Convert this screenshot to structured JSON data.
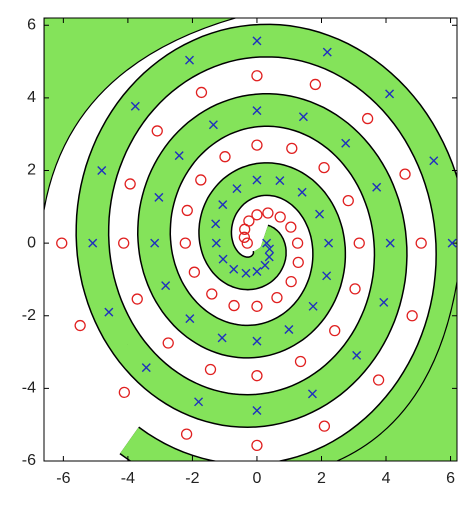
{
  "chart_data": {
    "type": "scatter",
    "xlim": [
      -6.6,
      6.2
    ],
    "ylim": [
      -6,
      6.2
    ],
    "xticks": [
      -6,
      -4,
      -2,
      0,
      2,
      4,
      6
    ],
    "yticks": [
      -6,
      -4,
      -2,
      0,
      2,
      4,
      6
    ],
    "series": [
      {
        "color": "#1f2fbf",
        "marker": "x",
        "x": [
          6.05,
          5.48,
          4.11,
          2.18,
          0,
          -2.09,
          -3.77,
          -4.81,
          -5.09,
          -4.59,
          -3.43,
          -1.81,
          0,
          1.72,
          3.09,
          3.93,
          4.13,
          3.71,
          2.75,
          1.44,
          0,
          -1.35,
          -2.41,
          -3.04,
          -3.17,
          -2.83,
          -2.08,
          -1.08,
          0,
          0.99,
          1.74,
          2.16,
          2.22,
          1.94,
          1.4,
          0.71,
          0,
          -0.62,
          -1.06,
          -1.28,
          -1.26,
          -1.05,
          -0.72,
          -0.34,
          0,
          0.25,
          0.38,
          0.39,
          0.3
        ],
        "y": [
          0,
          2.27,
          4.11,
          5.26,
          5.57,
          5.04,
          3.77,
          2,
          0,
          -1.9,
          -3.43,
          -4.37,
          -4.61,
          -4.15,
          -3.09,
          -1.63,
          0,
          1.54,
          2.75,
          3.48,
          3.65,
          3.26,
          2.41,
          1.26,
          0,
          -1.17,
          -2.08,
          -2.61,
          -2.7,
          -2.38,
          -1.74,
          -0.9,
          0,
          0.8,
          1.4,
          1.72,
          1.74,
          1.5,
          1.06,
          0.53,
          0,
          -0.44,
          -0.72,
          -0.83,
          -0.78,
          -0.61,
          -0.38,
          -0.16,
          0
        ]
      },
      {
        "color": "#e02020",
        "marker": "o",
        "x": [
          -6.05,
          -5.48,
          -4.11,
          -2.18,
          0,
          2.09,
          3.77,
          4.81,
          5.09,
          4.59,
          3.43,
          1.81,
          0,
          -1.72,
          -3.09,
          -3.93,
          -4.13,
          -3.71,
          -2.75,
          -1.44,
          0,
          1.35,
          2.41,
          3.04,
          3.17,
          2.83,
          2.08,
          1.08,
          0,
          -0.99,
          -1.74,
          -2.16,
          -2.22,
          -1.94,
          -1.4,
          -0.71,
          0,
          0.62,
          1.06,
          1.28,
          1.26,
          1.05,
          0.72,
          0.34,
          0,
          -0.25,
          -0.38,
          -0.39,
          -0.3
        ],
        "y": [
          0,
          -2.27,
          -4.11,
          -5.26,
          -5.57,
          -5.04,
          -3.77,
          -2,
          0,
          1.9,
          3.43,
          4.37,
          4.61,
          4.15,
          3.09,
          1.63,
          0,
          -1.54,
          -2.75,
          -3.48,
          -3.65,
          -3.26,
          -2.41,
          -1.26,
          0,
          1.17,
          2.08,
          2.61,
          2.7,
          2.38,
          1.74,
          0.9,
          0,
          -0.8,
          -1.4,
          -1.72,
          -1.74,
          -1.5,
          -1.06,
          -0.53,
          0,
          0.44,
          0.72,
          0.83,
          0.78,
          0.61,
          0.38,
          0.16,
          0
        ]
      }
    ]
  }
}
